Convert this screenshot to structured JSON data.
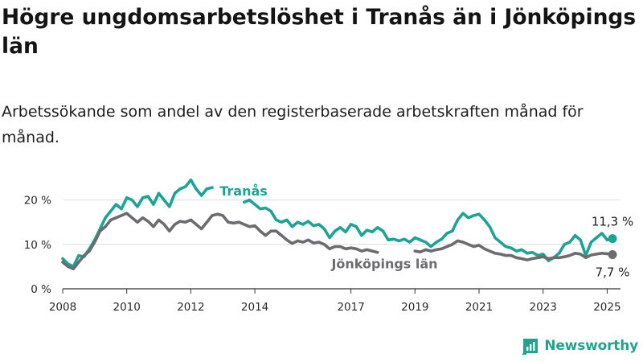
{
  "header": {
    "title": "Högre ungdomsarbetslöshet i Tranås än i Jönköpings län",
    "subtitle": "Arbetssökande som andel av den registerbaserade arbetskraften månad för månad."
  },
  "brand": {
    "name": "Newsworthy",
    "icon": "bar-chart-icon",
    "color": "#22a390"
  },
  "colors": {
    "tranas": "#1ba394",
    "lan": "#6b6b70",
    "grid": "#dcdcdc",
    "axis": "#333333"
  },
  "chart_data": {
    "type": "line",
    "title": "Högre ungdomsarbetslöshet i Tranås än i Jönköpings län",
    "subtitle": "Arbetssökande som andel av den registerbaserade arbetskraften månad för månad.",
    "xlabel": "",
    "ylabel": "",
    "xlim": [
      "2008-01",
      "2025-06"
    ],
    "ylim": [
      0,
      23
    ],
    "yticks": [
      0,
      10,
      20
    ],
    "ytick_labels": [
      "0 %",
      "10 %",
      "20 %"
    ],
    "xticks": [
      2008,
      2010,
      2012,
      2014,
      2017,
      2019,
      2021,
      2023,
      2025
    ],
    "grid": "horizontal",
    "legend": "inline labels",
    "series": [
      {
        "name": "Tranås",
        "end_label": "11,3 %",
        "points": [
          [
            "2008-01",
            6.8
          ],
          [
            "2008-03",
            5.6
          ],
          [
            "2008-05",
            5.0
          ],
          [
            "2008-07",
            7.5
          ],
          [
            "2008-09",
            7.2
          ],
          [
            "2008-11",
            9.0
          ],
          [
            "2009-01",
            11.0
          ],
          [
            "2009-03",
            13.5
          ],
          [
            "2009-05",
            16.0
          ],
          [
            "2009-07",
            17.5
          ],
          [
            "2009-09",
            19.0
          ],
          [
            "2009-11",
            18.0
          ],
          [
            "2010-01",
            20.5
          ],
          [
            "2010-03",
            20.0
          ],
          [
            "2010-05",
            18.5
          ],
          [
            "2010-07",
            20.5
          ],
          [
            "2010-09",
            20.8
          ],
          [
            "2010-11",
            19.0
          ],
          [
            "2011-01",
            21.5
          ],
          [
            "2011-03",
            20.0
          ],
          [
            "2011-05",
            18.5
          ],
          [
            "2011-07",
            21.5
          ],
          [
            "2011-09",
            22.5
          ],
          [
            "2011-11",
            23.0
          ],
          [
            "2012-01",
            24.5
          ],
          [
            "2012-03",
            22.5
          ],
          [
            "2012-05",
            21.0
          ],
          [
            "2012-07",
            22.5
          ],
          [
            "2012-09",
            22.8
          ]
        ]
      },
      {
        "name": "Tranås",
        "end_label": "11,3 %",
        "points": [
          [
            "2013-09",
            19.5
          ],
          [
            "2013-11",
            20.0
          ],
          [
            "2014-01",
            19.0
          ],
          [
            "2014-03",
            18.0
          ],
          [
            "2014-05",
            18.2
          ],
          [
            "2014-07",
            17.5
          ],
          [
            "2014-09",
            15.5
          ],
          [
            "2014-11",
            15.0
          ],
          [
            "2015-01",
            15.5
          ],
          [
            "2015-03",
            14.0
          ],
          [
            "2015-05",
            15.0
          ],
          [
            "2015-07",
            14.5
          ],
          [
            "2015-09",
            15.2
          ],
          [
            "2015-11",
            14.2
          ],
          [
            "2016-01",
            14.5
          ],
          [
            "2016-03",
            13.5
          ],
          [
            "2016-05",
            11.5
          ],
          [
            "2016-07",
            13.0
          ],
          [
            "2016-09",
            13.8
          ],
          [
            "2016-11",
            12.8
          ],
          [
            "2017-01",
            14.5
          ],
          [
            "2017-03",
            14.0
          ],
          [
            "2017-05",
            12.0
          ],
          [
            "2017-07",
            13.2
          ],
          [
            "2017-09",
            12.8
          ],
          [
            "2017-11",
            13.8
          ],
          [
            "2018-01",
            13.0
          ],
          [
            "2018-03",
            11.0
          ],
          [
            "2018-05",
            11.2
          ],
          [
            "2018-07",
            10.8
          ],
          [
            "2018-09",
            11.2
          ],
          [
            "2018-11",
            10.5
          ],
          [
            "2019-01",
            11.5
          ],
          [
            "2019-03",
            11.0
          ],
          [
            "2019-05",
            10.5
          ],
          [
            "2019-07",
            9.5
          ],
          [
            "2019-09",
            10.5
          ],
          [
            "2019-11",
            11.2
          ],
          [
            "2020-01",
            12.5
          ],
          [
            "2020-03",
            13.0
          ],
          [
            "2020-05",
            15.5
          ],
          [
            "2020-07",
            17.0
          ],
          [
            "2020-09",
            16.0
          ],
          [
            "2020-11",
            16.5
          ],
          [
            "2021-01",
            16.8
          ],
          [
            "2021-03",
            15.5
          ],
          [
            "2021-05",
            14.0
          ],
          [
            "2021-07",
            11.5
          ],
          [
            "2021-09",
            10.5
          ],
          [
            "2021-11",
            9.5
          ],
          [
            "2022-01",
            9.2
          ],
          [
            "2022-03",
            8.5
          ],
          [
            "2022-05",
            8.8
          ],
          [
            "2022-07",
            8.0
          ],
          [
            "2022-09",
            8.2
          ],
          [
            "2022-11",
            7.5
          ],
          [
            "2023-01",
            7.8
          ],
          [
            "2023-03",
            6.3
          ],
          [
            "2023-05",
            7.0
          ],
          [
            "2023-07",
            8.0
          ],
          [
            "2023-09",
            10.0
          ],
          [
            "2023-11",
            10.5
          ],
          [
            "2024-01",
            12.0
          ],
          [
            "2024-03",
            11.0
          ],
          [
            "2024-05",
            7.5
          ],
          [
            "2024-07",
            10.5
          ],
          [
            "2024-09",
            11.5
          ],
          [
            "2024-11",
            12.5
          ],
          [
            "2025-01",
            11.0
          ],
          [
            "2025-03",
            11.3
          ]
        ]
      },
      {
        "name": "Jönköpings län",
        "end_label": "7,7 %",
        "points": [
          [
            "2008-01",
            6.0
          ],
          [
            "2008-03",
            5.0
          ],
          [
            "2008-05",
            4.5
          ],
          [
            "2008-07",
            6.0
          ],
          [
            "2008-09",
            7.5
          ],
          [
            "2008-11",
            8.5
          ],
          [
            "2009-01",
            10.5
          ],
          [
            "2009-03",
            13.0
          ],
          [
            "2009-05",
            14.0
          ],
          [
            "2009-07",
            15.5
          ],
          [
            "2009-09",
            16.0
          ],
          [
            "2009-11",
            16.5
          ],
          [
            "2010-01",
            17.0
          ],
          [
            "2010-03",
            16.0
          ],
          [
            "2010-05",
            15.0
          ],
          [
            "2010-07",
            16.0
          ],
          [
            "2010-09",
            15.2
          ],
          [
            "2010-11",
            14.0
          ],
          [
            "2011-01",
            15.5
          ],
          [
            "2011-03",
            14.5
          ],
          [
            "2011-05",
            13.0
          ],
          [
            "2011-07",
            14.5
          ],
          [
            "2011-09",
            15.2
          ],
          [
            "2011-11",
            15.0
          ],
          [
            "2012-01",
            15.5
          ],
          [
            "2012-03",
            14.5
          ],
          [
            "2012-05",
            13.5
          ],
          [
            "2012-07",
            15.0
          ],
          [
            "2012-09",
            16.5
          ],
          [
            "2012-11",
            16.8
          ],
          [
            "2013-01",
            16.5
          ],
          [
            "2013-03",
            15.0
          ],
          [
            "2013-05",
            14.8
          ],
          [
            "2013-07",
            15.0
          ],
          [
            "2013-09",
            14.5
          ],
          [
            "2013-11",
            14.0
          ],
          [
            "2014-01",
            14.2
          ],
          [
            "2014-03",
            13.0
          ],
          [
            "2014-05",
            12.0
          ],
          [
            "2014-07",
            13.0
          ],
          [
            "2014-09",
            13.0
          ],
          [
            "2014-11",
            12.0
          ],
          [
            "2015-01",
            11.0
          ],
          [
            "2015-03",
            10.2
          ],
          [
            "2015-05",
            10.8
          ],
          [
            "2015-07",
            10.5
          ],
          [
            "2015-09",
            11.0
          ],
          [
            "2015-11",
            10.3
          ],
          [
            "2016-01",
            10.5
          ],
          [
            "2016-03",
            10.0
          ],
          [
            "2016-05",
            9.0
          ],
          [
            "2016-07",
            9.5
          ],
          [
            "2016-09",
            9.5
          ],
          [
            "2016-11",
            9.0
          ],
          [
            "2017-01",
            9.2
          ],
          [
            "2017-03",
            9.0
          ],
          [
            "2017-05",
            8.5
          ],
          [
            "2017-07",
            8.8
          ],
          [
            "2017-09",
            8.5
          ],
          [
            "2017-11",
            8.2
          ]
        ]
      },
      {
        "name": "Jönköpings län",
        "end_label": "7,7 %",
        "points": [
          [
            "2019-01",
            8.5
          ],
          [
            "2019-03",
            8.3
          ],
          [
            "2019-05",
            8.8
          ],
          [
            "2019-07",
            8.5
          ],
          [
            "2019-09",
            8.8
          ],
          [
            "2019-11",
            9.0
          ],
          [
            "2020-01",
            9.5
          ],
          [
            "2020-03",
            10.0
          ],
          [
            "2020-05",
            10.8
          ],
          [
            "2020-07",
            10.5
          ],
          [
            "2020-09",
            10.0
          ],
          [
            "2020-11",
            9.5
          ],
          [
            "2021-01",
            9.8
          ],
          [
            "2021-03",
            9.0
          ],
          [
            "2021-05",
            8.5
          ],
          [
            "2021-07",
            8.0
          ],
          [
            "2021-09",
            7.8
          ],
          [
            "2021-11",
            7.5
          ],
          [
            "2022-01",
            7.5
          ],
          [
            "2022-03",
            7.0
          ],
          [
            "2022-05",
            6.8
          ],
          [
            "2022-07",
            6.5
          ],
          [
            "2022-09",
            6.8
          ],
          [
            "2022-11",
            7.0
          ],
          [
            "2023-01",
            7.2
          ],
          [
            "2023-03",
            6.8
          ],
          [
            "2023-05",
            7.0
          ],
          [
            "2023-07",
            7.0
          ],
          [
            "2023-09",
            7.2
          ],
          [
            "2023-11",
            7.5
          ],
          [
            "2024-01",
            8.0
          ],
          [
            "2024-03",
            7.8
          ],
          [
            "2024-05",
            7.0
          ],
          [
            "2024-07",
            7.6
          ],
          [
            "2024-09",
            7.8
          ],
          [
            "2024-11",
            8.0
          ],
          [
            "2025-01",
            7.9
          ],
          [
            "2025-03",
            7.7
          ]
        ]
      }
    ]
  }
}
